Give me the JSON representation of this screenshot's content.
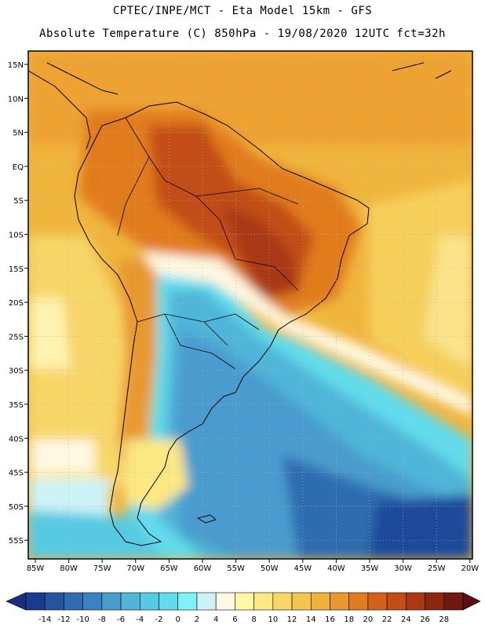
{
  "header": {
    "line1": "CPTEC/INPE/MCT -  Eta Model 15km - GFS",
    "line2": "Absolute Temperature (C) 850hPa - 19/08/2020 12UTC fct=32h"
  },
  "map": {
    "lat_labels": [
      "15N",
      "10N",
      "5N",
      "EQ",
      "5S",
      "10S",
      "15S",
      "20S",
      "25S",
      "30S",
      "35S",
      "40S",
      "45S",
      "50S",
      "55S"
    ],
    "lon_labels": [
      "85W",
      "80W",
      "75W",
      "70W",
      "65W",
      "60W",
      "55W",
      "50W",
      "45W",
      "40W",
      "35W",
      "30W",
      "25W",
      "20W"
    ]
  },
  "colorbar": {
    "labels": [
      "-14",
      "-12",
      "-10",
      "-8",
      "-6",
      "-4",
      "-2",
      "0",
      "2",
      "4",
      "6",
      "8",
      "10",
      "12",
      "14",
      "16",
      "18",
      "20",
      "22",
      "24",
      "26",
      "28"
    ],
    "colors": [
      "#1a3a8f",
      "#24559f",
      "#2f6cb0",
      "#3b83c0",
      "#4a9ccd",
      "#50b5d9",
      "#56c9e3",
      "#62dcec",
      "#7ff2f6",
      "#cdf3f8",
      "#fff8e2",
      "#fff7a8",
      "#fde884",
      "#f8d766",
      "#f3c64c",
      "#eeb13a",
      "#e9982d",
      "#e17b1e",
      "#d2621a",
      "#c34d17",
      "#a83913",
      "#8b2812",
      "#6e1a10"
    ],
    "under_color": "#18307a",
    "over_color": "#5e0d15"
  }
}
